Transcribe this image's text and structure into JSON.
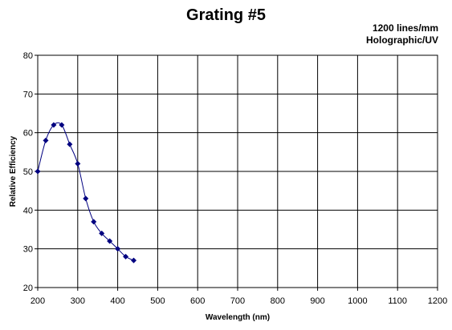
{
  "chart_data": {
    "type": "scatter",
    "title": "Grating #5",
    "annotations": [
      "1200 lines/mm",
      "Holographic/UV"
    ],
    "xlabel": "Wavelength (nm)",
    "ylabel": "Relative Efficiency",
    "xlim": [
      200,
      1200
    ],
    "ylim": [
      20,
      80
    ],
    "xticks": [
      200,
      300,
      400,
      500,
      600,
      700,
      800,
      900,
      1000,
      1100,
      1200
    ],
    "yticks": [
      20,
      30,
      40,
      50,
      60,
      70,
      80
    ],
    "grid": true,
    "legend": "none",
    "series": [
      {
        "x": [
          200,
          220,
          240,
          260,
          280,
          300,
          320,
          340,
          360,
          380,
          400,
          420,
          440
        ],
        "y": [
          50,
          58,
          62,
          62,
          57,
          52,
          43,
          37,
          34,
          32,
          30,
          28,
          27
        ],
        "color": "#000080",
        "marker": "diamond",
        "smooth": true
      }
    ]
  }
}
